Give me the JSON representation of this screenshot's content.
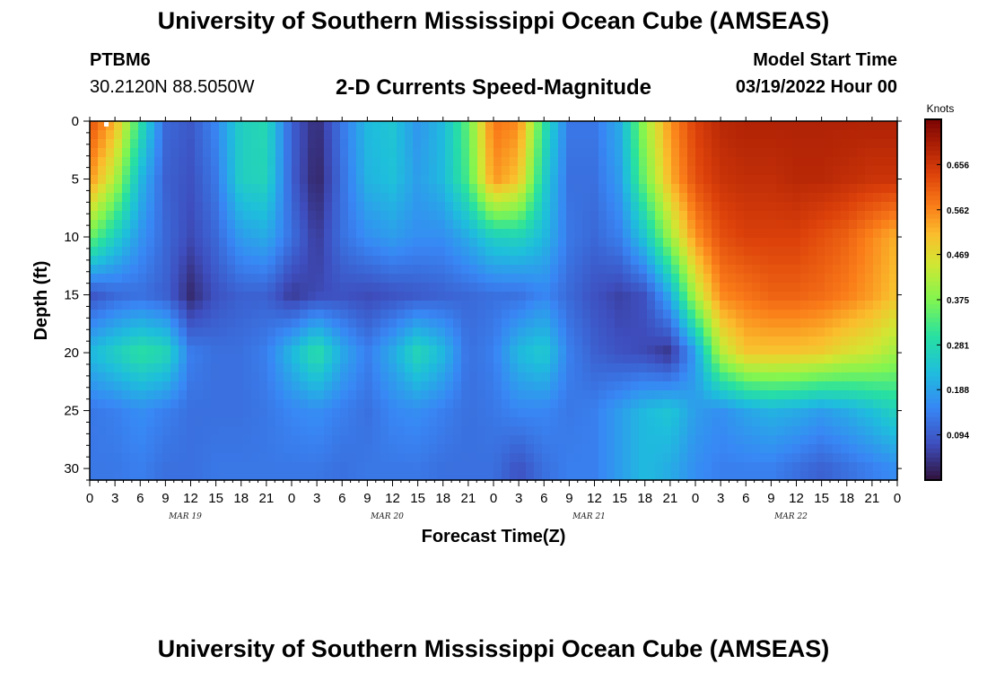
{
  "title": "University of Southern Mississippi Ocean Cube (AMSEAS)",
  "footer_title": "University of Southern Mississippi Ocean Cube (AMSEAS)",
  "station": "PTBM6",
  "coordinates": "30.2120N  88.5050W",
  "subtitle": "2-D Currents Speed-Magnitude",
  "model_start_label": "Model Start Time",
  "model_start_value": "03/19/2022 Hour 00",
  "chart_data": {
    "type": "heatmap",
    "title": "2-D Currents Speed-Magnitude",
    "xlabel": "Forecast Time(Z)",
    "ylabel": "Depth (ft)",
    "colorbar_label": "Knots",
    "xlim": [
      0,
      96
    ],
    "ylim": [
      0,
      31
    ],
    "x_tick_values": [
      0,
      3,
      6,
      9,
      12,
      15,
      18,
      21,
      24,
      27,
      30,
      33,
      36,
      39,
      42,
      45,
      48,
      51,
      54,
      57,
      60,
      63,
      66,
      69,
      72,
      75,
      78,
      81,
      84,
      87,
      90,
      93,
      96
    ],
    "x_tick_labels": [
      "0",
      "3",
      "6",
      "9",
      "12",
      "15",
      "18",
      "21",
      "0",
      "3",
      "6",
      "9",
      "12",
      "15",
      "18",
      "21",
      "0",
      "3",
      "6",
      "9",
      "12",
      "15",
      "18",
      "21",
      "0",
      "3",
      "6",
      "9",
      "12",
      "15",
      "18",
      "21",
      "0"
    ],
    "date_labels": [
      {
        "hour": 12,
        "label": "MAR 19"
      },
      {
        "hour": 36,
        "label": "MAR 20"
      },
      {
        "hour": 60,
        "label": "MAR 21"
      },
      {
        "hour": 84,
        "label": "MAR 22"
      }
    ],
    "y_tick_values": [
      0,
      5,
      10,
      15,
      20,
      25,
      30
    ],
    "y_tick_labels": [
      "0",
      "5",
      "10",
      "15",
      "20",
      "25",
      "30"
    ],
    "colorbar_ticks": [
      0.094,
      0.188,
      0.281,
      0.375,
      0.469,
      0.562,
      0.656
    ],
    "colorbar_tick_labels": [
      "0.094",
      "0.188",
      "0.281",
      "0.375",
      "0.469",
      "0.562",
      "0.656"
    ],
    "colorbar_range": [
      0.0,
      0.75
    ],
    "hours": [
      0,
      3,
      6,
      9,
      12,
      15,
      18,
      21,
      24,
      27,
      30,
      33,
      36,
      39,
      42,
      45,
      48,
      51,
      54,
      57,
      60,
      63,
      66,
      69,
      72,
      75,
      78,
      81,
      84,
      87,
      90,
      93,
      96
    ],
    "depths": [
      0,
      5,
      10,
      15,
      20,
      25,
      30
    ],
    "grid_values": [
      [
        0.62,
        0.52,
        0.3,
        0.11,
        0.09,
        0.15,
        0.26,
        0.28,
        0.1,
        0.03,
        0.13,
        0.22,
        0.24,
        0.17,
        0.22,
        0.35,
        0.58,
        0.56,
        0.3,
        0.13,
        0.13,
        0.2,
        0.4,
        0.55,
        0.64,
        0.68,
        0.69,
        0.69,
        0.69,
        0.69,
        0.69,
        0.69,
        0.69
      ],
      [
        0.55,
        0.42,
        0.22,
        0.1,
        0.08,
        0.13,
        0.26,
        0.27,
        0.1,
        0.02,
        0.12,
        0.21,
        0.23,
        0.18,
        0.22,
        0.33,
        0.55,
        0.5,
        0.26,
        0.12,
        0.12,
        0.18,
        0.36,
        0.52,
        0.62,
        0.66,
        0.67,
        0.67,
        0.68,
        0.68,
        0.67,
        0.66,
        0.66
      ],
      [
        0.36,
        0.26,
        0.17,
        0.11,
        0.07,
        0.11,
        0.18,
        0.2,
        0.12,
        0.05,
        0.12,
        0.16,
        0.18,
        0.16,
        0.16,
        0.2,
        0.26,
        0.27,
        0.22,
        0.13,
        0.11,
        0.14,
        0.24,
        0.4,
        0.55,
        0.62,
        0.64,
        0.64,
        0.64,
        0.62,
        0.6,
        0.56,
        0.52
      ],
      [
        0.08,
        0.11,
        0.12,
        0.1,
        0.03,
        0.08,
        0.1,
        0.1,
        0.05,
        0.07,
        0.08,
        0.07,
        0.08,
        0.09,
        0.1,
        0.11,
        0.12,
        0.12,
        0.15,
        0.11,
        0.08,
        0.06,
        0.08,
        0.2,
        0.42,
        0.56,
        0.58,
        0.6,
        0.6,
        0.59,
        0.57,
        0.54,
        0.5
      ],
      [
        0.22,
        0.26,
        0.3,
        0.28,
        0.14,
        0.12,
        0.12,
        0.14,
        0.22,
        0.3,
        0.2,
        0.14,
        0.2,
        0.28,
        0.22,
        0.12,
        0.14,
        0.22,
        0.25,
        0.14,
        0.1,
        0.08,
        0.07,
        0.04,
        0.18,
        0.42,
        0.5,
        0.5,
        0.5,
        0.49,
        0.46,
        0.44,
        0.4
      ],
      [
        0.13,
        0.14,
        0.16,
        0.14,
        0.12,
        0.12,
        0.12,
        0.13,
        0.15,
        0.16,
        0.14,
        0.12,
        0.15,
        0.16,
        0.14,
        0.12,
        0.13,
        0.15,
        0.15,
        0.13,
        0.14,
        0.18,
        0.22,
        0.24,
        0.18,
        0.16,
        0.19,
        0.21,
        0.2,
        0.18,
        0.2,
        0.23,
        0.27
      ],
      [
        0.13,
        0.13,
        0.14,
        0.12,
        0.12,
        0.13,
        0.13,
        0.13,
        0.13,
        0.13,
        0.12,
        0.13,
        0.13,
        0.13,
        0.12,
        0.12,
        0.12,
        0.08,
        0.12,
        0.14,
        0.14,
        0.18,
        0.22,
        0.2,
        0.16,
        0.14,
        0.14,
        0.14,
        0.12,
        0.1,
        0.12,
        0.14,
        0.16
      ]
    ],
    "grid": false,
    "legend": "colorbar-right"
  }
}
